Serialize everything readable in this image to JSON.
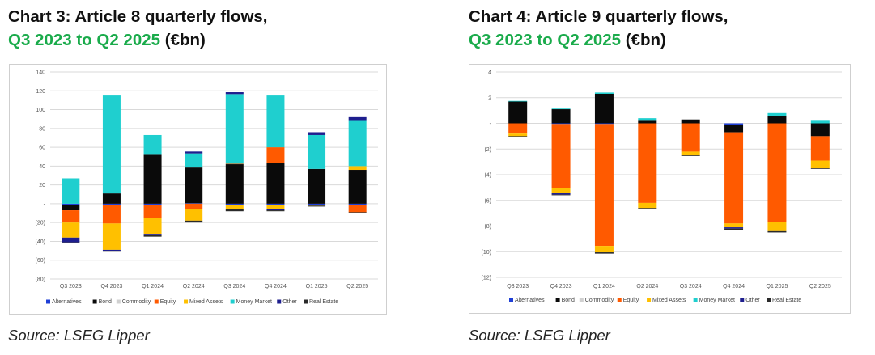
{
  "chart_data": [
    {
      "type": "bar",
      "stacked": true,
      "title_line1": "Chart 3: Article 8 quarterly flows,",
      "title_period": "Q3 2023 to Q2 2025",
      "title_unit": " (€bn)",
      "source": "Source: LSEG Lipper",
      "categories": [
        "Q3 2023",
        "Q4 2023",
        "Q1 2024",
        "Q2 2024",
        "Q3 2024",
        "Q4 2024",
        "Q1 2025",
        "Q2 2025"
      ],
      "ylim": [
        -80,
        140
      ],
      "ytick_values": [
        -80,
        -60,
        -40,
        -20,
        0,
        20,
        40,
        60,
        80,
        100,
        120,
        140
      ],
      "ytick_labels": [
        "(80)",
        "(60)",
        "(40)",
        "(20)",
        "-",
        "20",
        "40",
        "60",
        "80",
        "100",
        "120",
        "140"
      ],
      "grid": true,
      "legend_position": "bottom",
      "series": [
        {
          "name": "Alternatives",
          "color": "#1f3fd6",
          "values": [
            -1,
            -1,
            -1,
            0.5,
            -1,
            -1,
            -1,
            -1
          ]
        },
        {
          "name": "Bond",
          "color": "#0a0a0a",
          "values": [
            -6,
            11,
            52,
            38,
            42,
            43,
            37,
            36
          ]
        },
        {
          "name": "Commodity",
          "color": "#d0d0d0",
          "values": [
            0,
            0,
            0,
            0,
            0,
            0,
            0,
            0
          ]
        },
        {
          "name": "Equity",
          "color": "#ff5a00",
          "values": [
            -13,
            -20,
            -14,
            -6,
            0.5,
            17,
            0,
            -8
          ]
        },
        {
          "name": "Mixed Assets",
          "color": "#ffc000",
          "values": [
            -16,
            -28,
            -17,
            -12,
            -5,
            -5,
            -1,
            4
          ]
        },
        {
          "name": "Money Market",
          "color": "#1fcfcf",
          "values": [
            27,
            104,
            21,
            15,
            74,
            55,
            36,
            48
          ]
        },
        {
          "name": "Other",
          "color": "#1e1e8e",
          "values": [
            -5,
            -1,
            -1,
            2,
            2,
            -1,
            3,
            4
          ]
        },
        {
          "name": "Real Estate",
          "color": "#2a2a2a",
          "values": [
            -1,
            -1,
            -2,
            -2,
            -2,
            -1,
            -1,
            -1
          ]
        }
      ]
    },
    {
      "type": "bar",
      "stacked": true,
      "title_line1": "Chart 4: Article 9 quarterly flows,",
      "title_period": "Q3 2023 to Q2 2025",
      "title_unit": " (€bn)",
      "source": "Source: LSEG Lipper",
      "categories": [
        "Q3 2023",
        "Q4 2023",
        "Q1 2024",
        "Q2 2024",
        "Q3 2024",
        "Q4 2024",
        "Q1 2025",
        "Q2 2025"
      ],
      "ylim": [
        -12,
        4
      ],
      "ytick_values": [
        -12,
        -10,
        -8,
        -6,
        -4,
        -2,
        0,
        2,
        4
      ],
      "ytick_labels": [
        "(12)",
        "(10)",
        "(8)",
        "(6)",
        "(4)",
        "(2)",
        "-",
        "2",
        "4"
      ],
      "grid": true,
      "legend_position": "bottom",
      "series": [
        {
          "name": "Alternatives",
          "color": "#1f3fd6",
          "values": [
            0,
            -0.05,
            -0.05,
            0,
            0,
            -0.1,
            0,
            0
          ]
        },
        {
          "name": "Bond",
          "color": "#0a0a0a",
          "values": [
            1.7,
            1.1,
            2.3,
            0.2,
            0.3,
            -0.6,
            0.6,
            -1.0
          ]
        },
        {
          "name": "Commodity",
          "color": "#d0d0d0",
          "values": [
            0,
            0,
            0,
            0,
            0,
            0,
            0,
            0
          ]
        },
        {
          "name": "Equity",
          "color": "#ff5a00",
          "values": [
            -0.8,
            -5.0,
            -9.5,
            -6.2,
            -2.2,
            -7.1,
            -7.7,
            -1.9
          ]
        },
        {
          "name": "Mixed Assets",
          "color": "#ffc000",
          "values": [
            -0.2,
            -0.4,
            -0.5,
            -0.4,
            -0.3,
            -0.3,
            -0.7,
            -0.6
          ]
        },
        {
          "name": "Money Market",
          "color": "#1fcfcf",
          "values": [
            0.05,
            0.05,
            0.1,
            0.2,
            0,
            0,
            0.2,
            0.2
          ]
        },
        {
          "name": "Other",
          "color": "#1e1e8e",
          "values": [
            0,
            -0.1,
            0,
            0,
            0,
            -0.1,
            0,
            0
          ]
        },
        {
          "name": "Real Estate",
          "color": "#2a2a2a",
          "values": [
            -0.05,
            -0.05,
            -0.1,
            -0.1,
            -0.05,
            -0.1,
            -0.1,
            -0.05
          ]
        }
      ]
    }
  ]
}
